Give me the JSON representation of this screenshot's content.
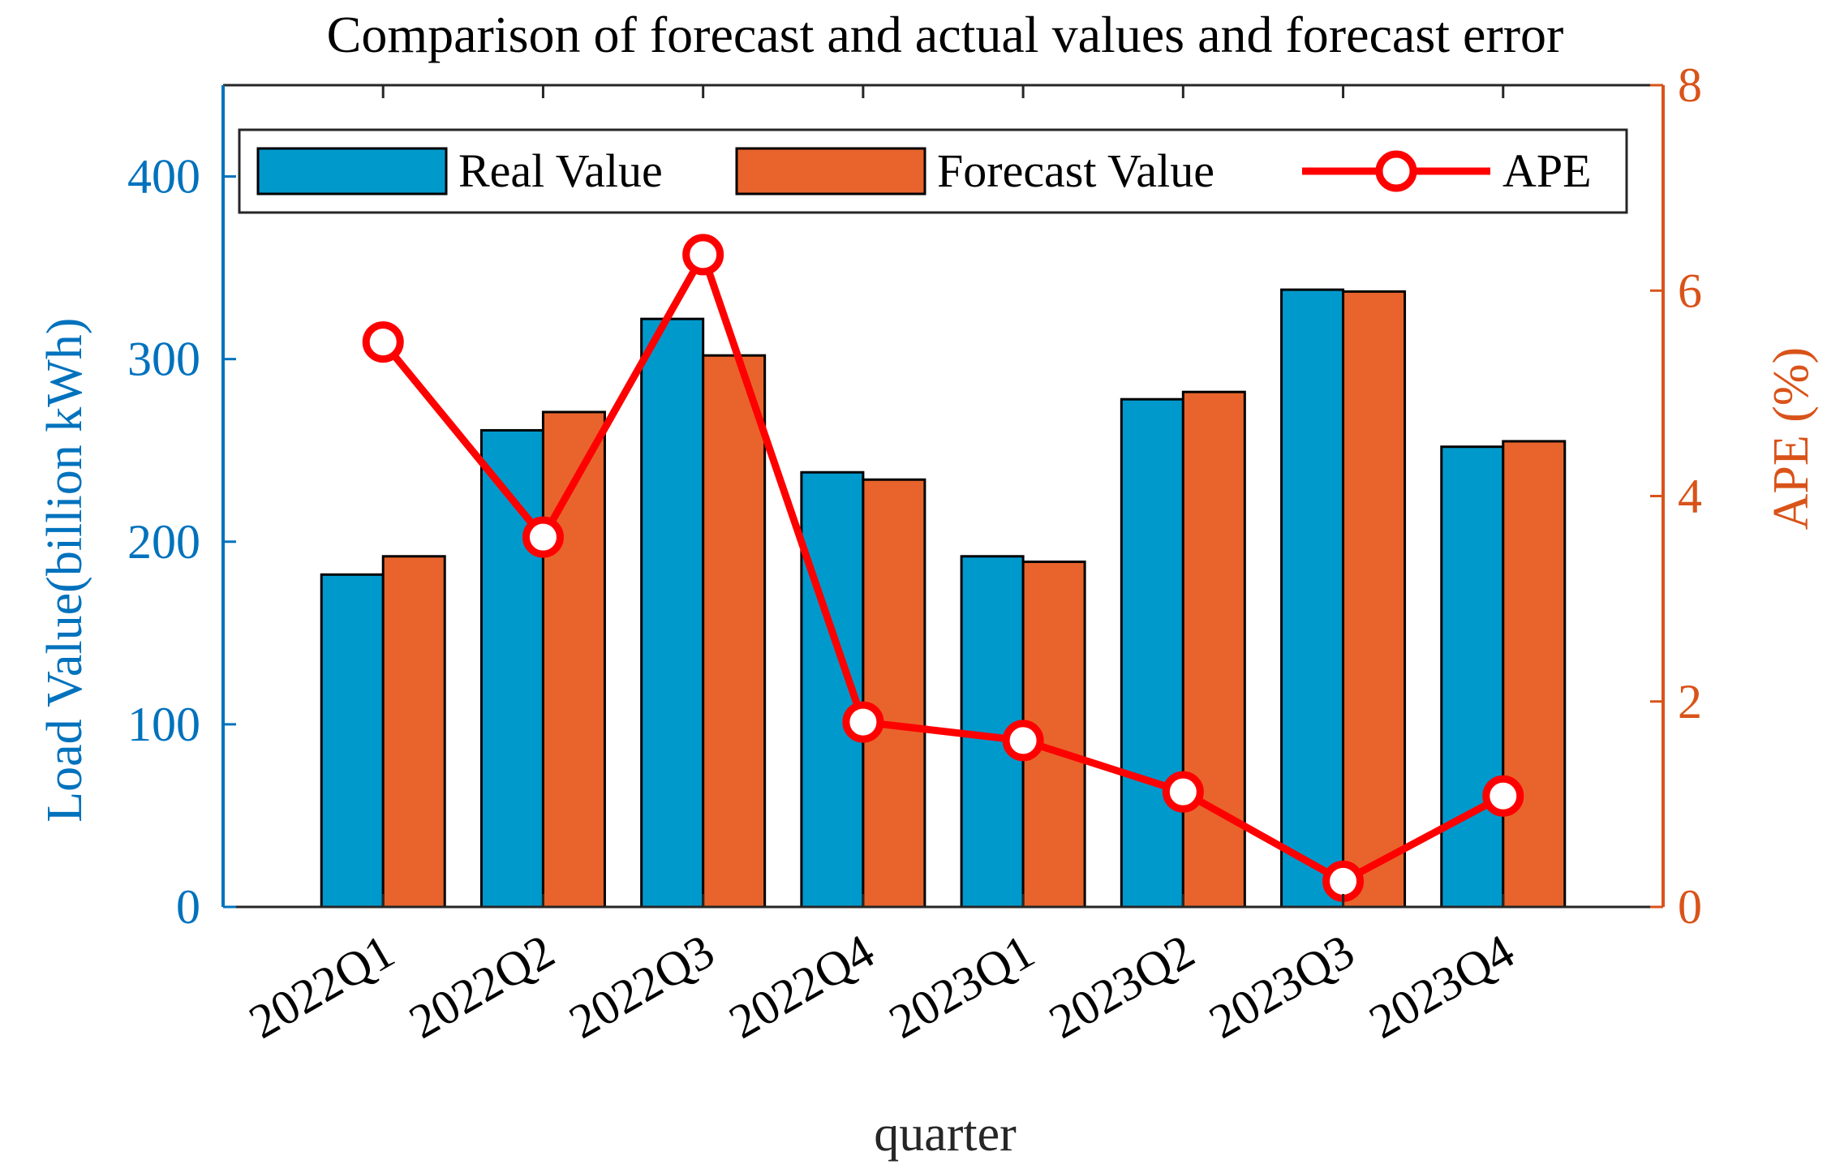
{
  "chart_data": {
    "type": "bar",
    "title": "Comparison of forecast and actual values and forecast error",
    "xlabel": "quarter",
    "ylabel": "Load Value(billion kWh)",
    "ylabel_right": "APE (%)",
    "categories": [
      "2022Q1",
      "2022Q2",
      "2022Q3",
      "2022Q4",
      "2023Q1",
      "2023Q2",
      "2023Q3",
      "2023Q4"
    ],
    "ylim": [
      0,
      450
    ],
    "yticks": [
      0,
      100,
      200,
      300,
      400
    ],
    "ylim_right": [
      0,
      8
    ],
    "yticks_right": [
      0,
      2,
      4,
      6,
      8
    ],
    "grid": false,
    "legend_position": "top",
    "series": [
      {
        "name": "Real Value",
        "type": "bar",
        "axis": "left",
        "color": "#0099cc",
        "values": [
          182,
          261,
          322,
          238,
          192,
          278,
          338,
          252
        ]
      },
      {
        "name": "Forecast Value",
        "type": "bar",
        "axis": "left",
        "color": "#e8642c",
        "values": [
          192,
          271,
          302,
          234,
          189,
          282,
          337,
          255
        ]
      },
      {
        "name": "APE",
        "type": "line",
        "axis": "right",
        "color": "#ff0000",
        "marker": "circle",
        "values": [
          5.5,
          3.6,
          6.35,
          1.8,
          1.62,
          1.12,
          0.25,
          1.08
        ]
      }
    ],
    "colors": {
      "left_axis": "#0072bd",
      "right_axis": "#d95319",
      "axis_box": "#262626",
      "text": "#262626"
    }
  }
}
